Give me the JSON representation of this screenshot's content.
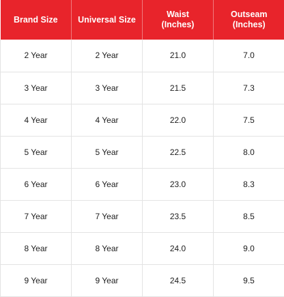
{
  "headers": [
    {
      "lines": [
        "Brand Size"
      ]
    },
    {
      "lines": [
        "Universal Size"
      ]
    },
    {
      "lines": [
        "Waist",
        "(Inches)"
      ]
    },
    {
      "lines": [
        "Outseam",
        "(Inches)"
      ]
    }
  ],
  "rows": [
    [
      "2 Year",
      "2 Year",
      "21.0",
      "7.0"
    ],
    [
      "3 Year",
      "3 Year",
      "21.5",
      "7.3"
    ],
    [
      "4 Year",
      "4 Year",
      "22.0",
      "7.5"
    ],
    [
      "5 Year",
      "5 Year",
      "22.5",
      "8.0"
    ],
    [
      "6 Year",
      "6 Year",
      "23.0",
      "8.3"
    ],
    [
      "7 Year",
      "7 Year",
      "23.5",
      "8.5"
    ],
    [
      "8 Year",
      "8 Year",
      "24.0",
      "9.0"
    ],
    [
      "9 Year",
      "9 Year",
      "24.5",
      "9.5"
    ]
  ],
  "colors": {
    "header_bg": "#e8242b",
    "header_text": "#ffffff",
    "cell_text": "#1c1c1c",
    "grid_line": "#e3e3e3"
  }
}
